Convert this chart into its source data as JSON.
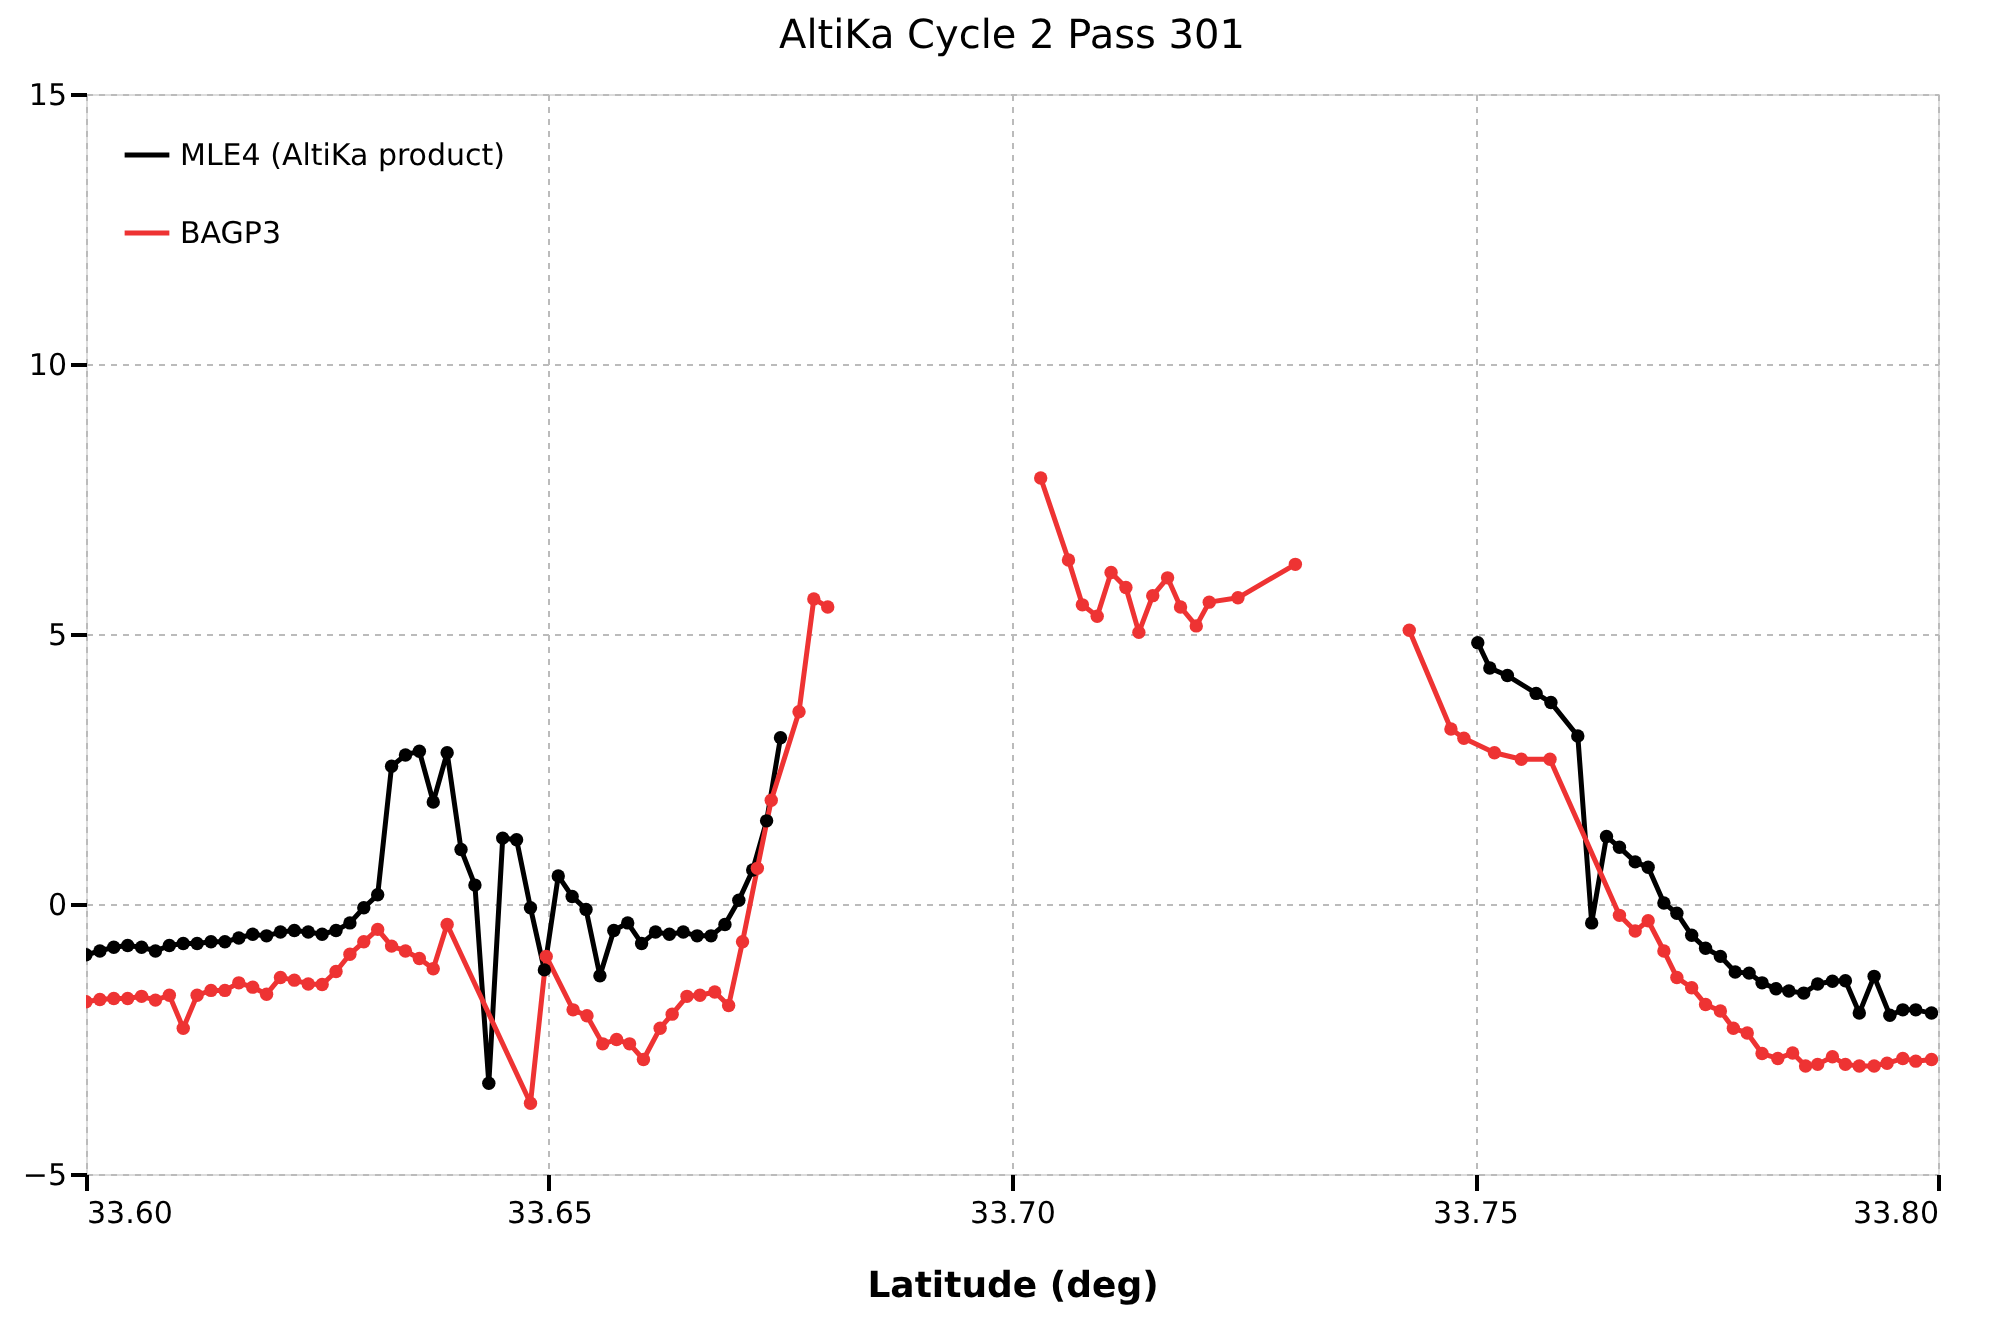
{
  "chart_data": {
    "type": "line",
    "title": "AltiKa Cycle 2 Pass 301",
    "xlabel": "Latitude (deg)",
    "xlim": [
      33.6,
      33.8
    ],
    "xticks": [
      {
        "value": 33.6,
        "label": "33.60"
      },
      {
        "value": 33.65,
        "label": "33.65"
      },
      {
        "value": 33.7,
        "label": "33.70"
      },
      {
        "value": 33.75,
        "label": "33.75"
      },
      {
        "value": 33.8,
        "label": "33.80"
      }
    ],
    "ylim": [
      -5,
      15
    ],
    "yticks": [
      -5,
      0,
      5,
      10,
      15
    ],
    "grid": true,
    "legend": "top left",
    "marker": "circle",
    "line_style": "solid",
    "series": [
      {
        "name": "MLE4 (AltiKa product)",
        "color": "#000000",
        "x": [
          33.6,
          33.6015,
          33.603,
          33.6045,
          33.606,
          33.6075,
          33.609,
          33.6105,
          33.612,
          33.6135,
          33.615,
          33.6165,
          33.618,
          33.6195,
          33.621,
          33.6225,
          33.624,
          33.6255,
          33.627,
          33.6285,
          33.63,
          33.6315,
          33.633,
          33.6345,
          33.636,
          33.6375,
          33.639,
          33.6405,
          33.642,
          33.6435,
          33.645,
          33.6465,
          33.648,
          33.6495,
          33.651,
          33.6525,
          33.654,
          33.6555,
          33.657,
          33.6585,
          33.66,
          33.6615,
          33.663,
          33.6645,
          33.666,
          33.6675,
          33.669,
          33.6705,
          33.672,
          33.6735,
          33.675,
          33.7,
          33.7503,
          33.7516,
          33.7535,
          33.7566,
          33.7582,
          33.7611,
          33.7626,
          33.7642,
          33.7656,
          33.7673,
          33.7687,
          33.7704,
          33.7718,
          33.7734,
          33.7749,
          33.7765,
          33.7781,
          33.7796,
          33.781,
          33.7825,
          33.7839,
          33.7855,
          33.787,
          33.7886,
          33.79,
          33.7915,
          33.7931,
          33.7948,
          33.7962,
          33.7976,
          33.7993
        ],
        "values": [
          -0.94,
          -0.87,
          -0.8,
          -0.77,
          -0.8,
          -0.87,
          -0.77,
          -0.73,
          -0.73,
          -0.7,
          -0.7,
          -0.63,
          -0.56,
          -0.59,
          -0.52,
          -0.49,
          -0.52,
          -0.56,
          -0.49,
          -0.35,
          -0.07,
          0.17,
          2.55,
          2.76,
          2.83,
          1.89,
          2.8,
          1.01,
          0.35,
          -3.32,
          1.22,
          1.19,
          -0.07,
          -1.22,
          0.52,
          0.14,
          -0.1,
          -1.33,
          -0.49,
          -0.35,
          -0.73,
          -0.52,
          -0.56,
          -0.52,
          -0.59,
          -0.59,
          -0.38,
          0.07,
          0.63,
          1.54,
          3.08,
          null,
          4.84,
          4.37,
          4.23,
          3.9,
          3.73,
          3.11,
          -0.35,
          1.25,
          1.05,
          0.78,
          0.68,
          0.02,
          -0.17,
          -0.58,
          -0.82,
          -0.97,
          -1.26,
          -1.28,
          -1.46,
          -1.57,
          -1.61,
          -1.65,
          -1.48,
          -1.43,
          -1.42,
          -2.02,
          -1.34,
          -2.06,
          -1.96,
          -1.96,
          -2.02
        ]
      },
      {
        "name": "BAGP3",
        "color": "#ee3333",
        "x": [
          33.6,
          33.6015,
          33.603,
          33.6045,
          33.606,
          33.6075,
          33.609,
          33.6105,
          33.612,
          33.6135,
          33.615,
          33.6165,
          33.618,
          33.6195,
          33.621,
          33.6225,
          33.624,
          33.6255,
          33.627,
          33.6285,
          33.63,
          33.6315,
          33.633,
          33.6345,
          33.636,
          33.6375,
          33.639,
          33.648,
          33.6497,
          33.6526,
          33.6541,
          33.6558,
          33.6573,
          33.6587,
          33.6602,
          33.662,
          33.6633,
          33.6649,
          33.6663,
          33.6679,
          33.6694,
          33.6709,
          33.6725,
          33.674,
          33.677,
          33.6786,
          33.6801,
          33.69,
          33.7031,
          33.7061,
          33.7076,
          33.7092,
          33.7107,
          33.7123,
          33.7137,
          33.7152,
          33.7168,
          33.7182,
          33.7199,
          33.7213,
          33.7244,
          33.7306,
          33.737,
          33.7429,
          33.7474,
          33.7488,
          33.7521,
          33.755,
          33.7581,
          33.7656,
          33.7673,
          33.7687,
          33.7704,
          33.7718,
          33.7734,
          33.7749,
          33.7765,
          33.7779,
          33.7794,
          33.781,
          33.7827,
          33.7843,
          33.7857,
          33.787,
          33.7886,
          33.79,
          33.7915,
          33.7931,
          33.7945,
          33.7962,
          33.7976,
          33.7993
        ],
        "values": [
          -1.81,
          -1.77,
          -1.75,
          -1.75,
          -1.71,
          -1.78,
          -1.69,
          -2.3,
          -1.69,
          -1.6,
          -1.6,
          -1.46,
          -1.54,
          -1.67,
          -1.36,
          -1.41,
          -1.48,
          -1.49,
          -1.25,
          -0.93,
          -0.7,
          -0.47,
          -0.78,
          -0.87,
          -1.01,
          -1.2,
          -0.38,
          -3.69,
          -0.97,
          -1.96,
          -2.07,
          -2.59,
          -2.51,
          -2.59,
          -2.88,
          -2.3,
          -2.04,
          -1.71,
          -1.69,
          -1.63,
          -1.88,
          -0.7,
          0.66,
          1.92,
          3.56,
          5.65,
          5.5,
          null,
          7.89,
          6.37,
          5.54,
          5.33,
          6.14,
          5.86,
          5.03,
          5.71,
          6.04,
          5.5,
          5.15,
          5.59,
          5.67,
          6.29,
          null,
          5.07,
          3.24,
          3.07,
          2.8,
          2.68,
          2.68,
          -0.21,
          -0.5,
          -0.31,
          -0.87,
          -1.36,
          -1.55,
          -1.86,
          -1.98,
          -2.3,
          -2.39,
          -2.77,
          -2.86,
          -2.76,
          -3.0,
          -2.97,
          -2.83,
          -2.97,
          -3.0,
          -3.0,
          -2.95,
          -2.86,
          -2.91,
          -2.88
        ]
      }
    ]
  }
}
